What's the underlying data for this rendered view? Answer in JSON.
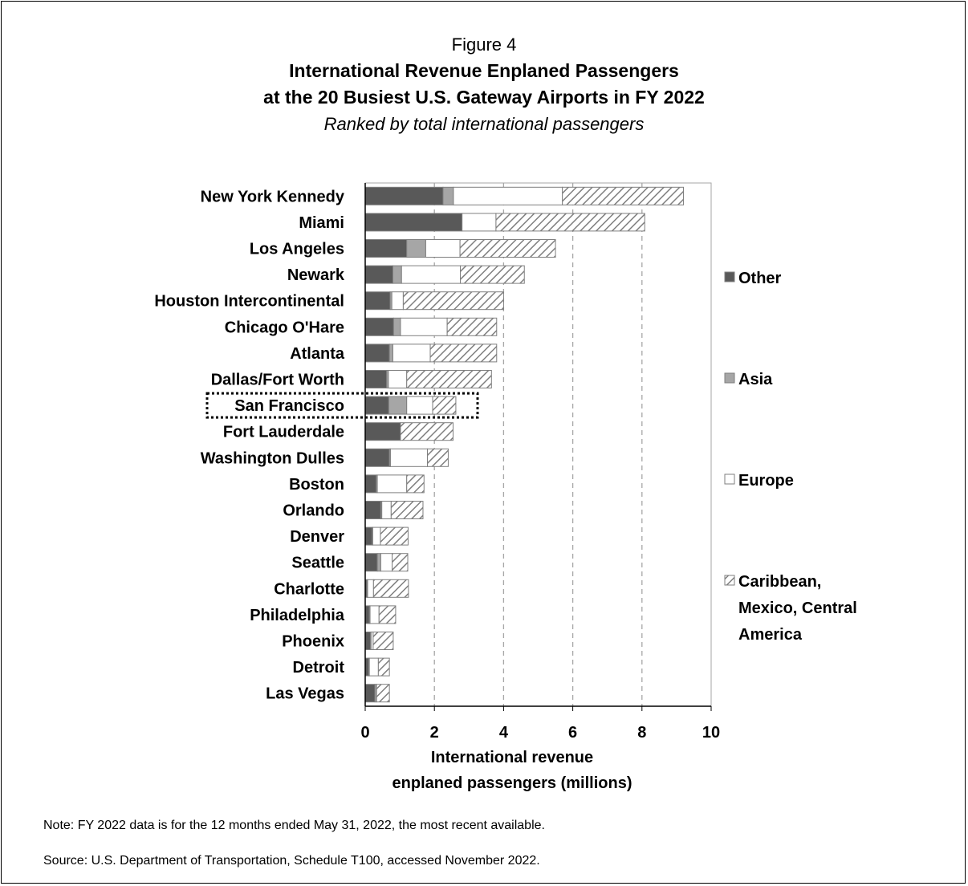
{
  "figure_label": "Figure 4",
  "title_line1": "International Revenue Enplaned Passengers",
  "title_line2": "at the 20 Busiest U.S. Gateway Airports in FY 2022",
  "subtitle": "Ranked by total international passengers",
  "note": "Note:  FY 2022 data is for the 12 months ended May 31, 2022, the most recent available.",
  "source": "Source:  U.S. Department of Transportation, Schedule T100, accessed November 2022.",
  "chart_data": {
    "type": "bar",
    "orientation": "horizontal",
    "stacked": true,
    "categories": [
      "New York Kennedy",
      "Miami",
      "Los Angeles",
      "Newark",
      "Houston Intercontinental",
      "Chicago O'Hare",
      "Atlanta",
      "Dallas/Fort Worth",
      "San Francisco",
      "Fort Lauderdale",
      "Washington Dulles",
      "Boston",
      "Orlando",
      "Denver",
      "Seattle",
      "Charlotte",
      "Philadelphia",
      "Phoenix",
      "Detroit",
      "Las Vegas"
    ],
    "highlighted_category": "San Francisco",
    "series": [
      {
        "name": "Other",
        "color": "#595959",
        "values": [
          2.25,
          2.8,
          1.2,
          0.8,
          0.72,
          0.82,
          0.7,
          0.62,
          0.68,
          1.02,
          0.7,
          0.32,
          0.45,
          0.2,
          0.35,
          0.05,
          0.12,
          0.15,
          0.1,
          0.28
        ]
      },
      {
        "name": "Asia",
        "color": "#a6a6a6",
        "values": [
          0.3,
          0.0,
          0.55,
          0.25,
          0.05,
          0.2,
          0.1,
          0.05,
          0.52,
          0.0,
          0.03,
          0.03,
          0.03,
          0.02,
          0.1,
          0.02,
          0.02,
          0.02,
          0.02,
          0.05
        ]
      },
      {
        "name": "Europe",
        "color": "#ffffff",
        "values": [
          3.15,
          0.98,
          0.99,
          1.7,
          0.33,
          1.35,
          1.08,
          0.53,
          0.75,
          0.0,
          1.07,
          0.85,
          0.27,
          0.22,
          0.33,
          0.17,
          0.26,
          0.06,
          0.26,
          0.0
        ]
      },
      {
        "name": "Caribbean, Mexico, Central America",
        "color": "hatch",
        "values": [
          3.5,
          4.3,
          2.76,
          1.85,
          2.9,
          1.43,
          1.92,
          2.45,
          0.67,
          1.52,
          0.6,
          0.5,
          0.92,
          0.8,
          0.45,
          1.01,
          0.48,
          0.58,
          0.32,
          0.37
        ]
      }
    ],
    "xlabel": "International revenue enplaned passengers (millions)",
    "xlim": [
      0,
      10
    ],
    "xticks": [
      0,
      2,
      4,
      6,
      8,
      10
    ],
    "grid": "vertical dashed",
    "legend_position": "right"
  }
}
